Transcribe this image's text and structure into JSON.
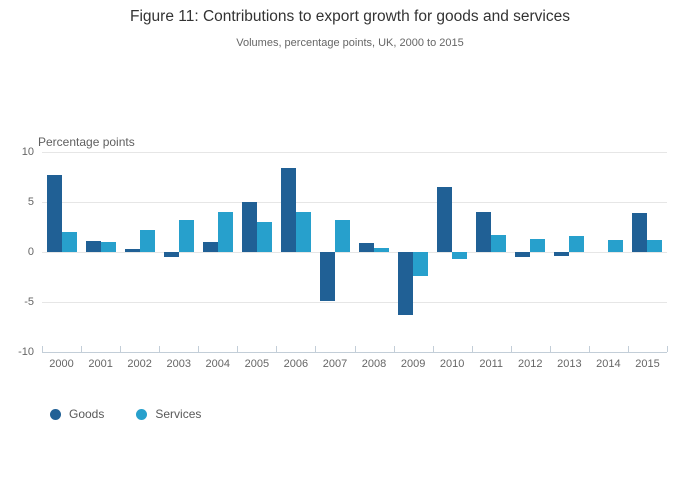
{
  "header": {
    "title": "Figure 11: Contributions to export growth for goods and services",
    "subtitle": "Volumes, percentage points, UK, 2000 to 2015"
  },
  "chart_data": {
    "type": "bar",
    "title": "Figure 11: Contributions to export growth for goods and services",
    "subtitle": "Volumes, percentage points, UK, 2000 to 2015",
    "axis_label": "Percentage points",
    "categories": [
      "2000",
      "2001",
      "2002",
      "2003",
      "2004",
      "2005",
      "2006",
      "2007",
      "2008",
      "2009",
      "2010",
      "2011",
      "2012",
      "2013",
      "2014",
      "2015"
    ],
    "series": [
      {
        "name": "Goods",
        "color": "#206095",
        "values": [
          7.7,
          1.1,
          0.3,
          -0.5,
          1.0,
          5.0,
          8.4,
          -4.9,
          0.9,
          -6.3,
          6.5,
          4.0,
          -0.5,
          -0.4,
          0.0,
          3.9
        ]
      },
      {
        "name": "Services",
        "color": "#27A0CC",
        "values": [
          2.0,
          1.0,
          2.2,
          3.2,
          4.0,
          3.0,
          4.0,
          3.2,
          0.4,
          -2.4,
          -0.7,
          1.7,
          1.3,
          1.6,
          1.2,
          1.2
        ]
      }
    ],
    "ylim": [
      -10,
      10
    ],
    "yticks": [
      10,
      5,
      0,
      -5,
      -10
    ],
    "grid": true,
    "legend_position": "bottom-left",
    "colors": {
      "goods": "#206095",
      "services": "#27A0CC",
      "gridline": "#e6e6e6",
      "axis": "#c3ced8",
      "text": "#666666"
    }
  }
}
